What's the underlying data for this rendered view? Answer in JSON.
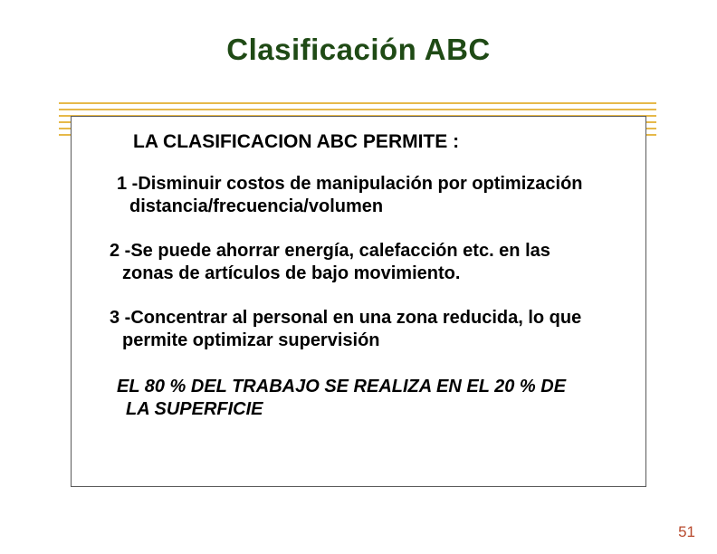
{
  "title": {
    "text": "Clasificación ABC",
    "color": "#1f4a15",
    "fontsize": 33
  },
  "hrules": {
    "color": "#e6b94a",
    "top1": 113,
    "top2": 120,
    "top3": 127,
    "top4": 134,
    "top5": 141,
    "top6": 148
  },
  "subtitle": {
    "text": "LA CLASIFICACION ABC PERMITE :",
    "fontsize": 21,
    "color": "#000000"
  },
  "items": {
    "p1_l1": "1 -Disminuir costos de manipulación por optimización",
    "p1_l2": "distancia/frecuencia/volumen",
    "p2_l1": "2 -Se puede ahorrar energía, calefacción etc. en las",
    "p2_l2": "zonas de artículos de bajo movimiento.",
    "p3_l1": "3 -Concentrar al personal en una zona reducida, lo que",
    "p3_l2": "permite optimizar supervisión",
    "fontsize": 20,
    "color": "#000000"
  },
  "closing": {
    "l1": "EL 80 % DEL TRABAJO SE REALIZA EN EL 20 % DE",
    "l2": "LA SUPERFICIE",
    "fontsize": 20,
    "color": "#000000"
  },
  "page_number": {
    "text": "51",
    "color": "#b84a2e",
    "fontsize": 17
  }
}
